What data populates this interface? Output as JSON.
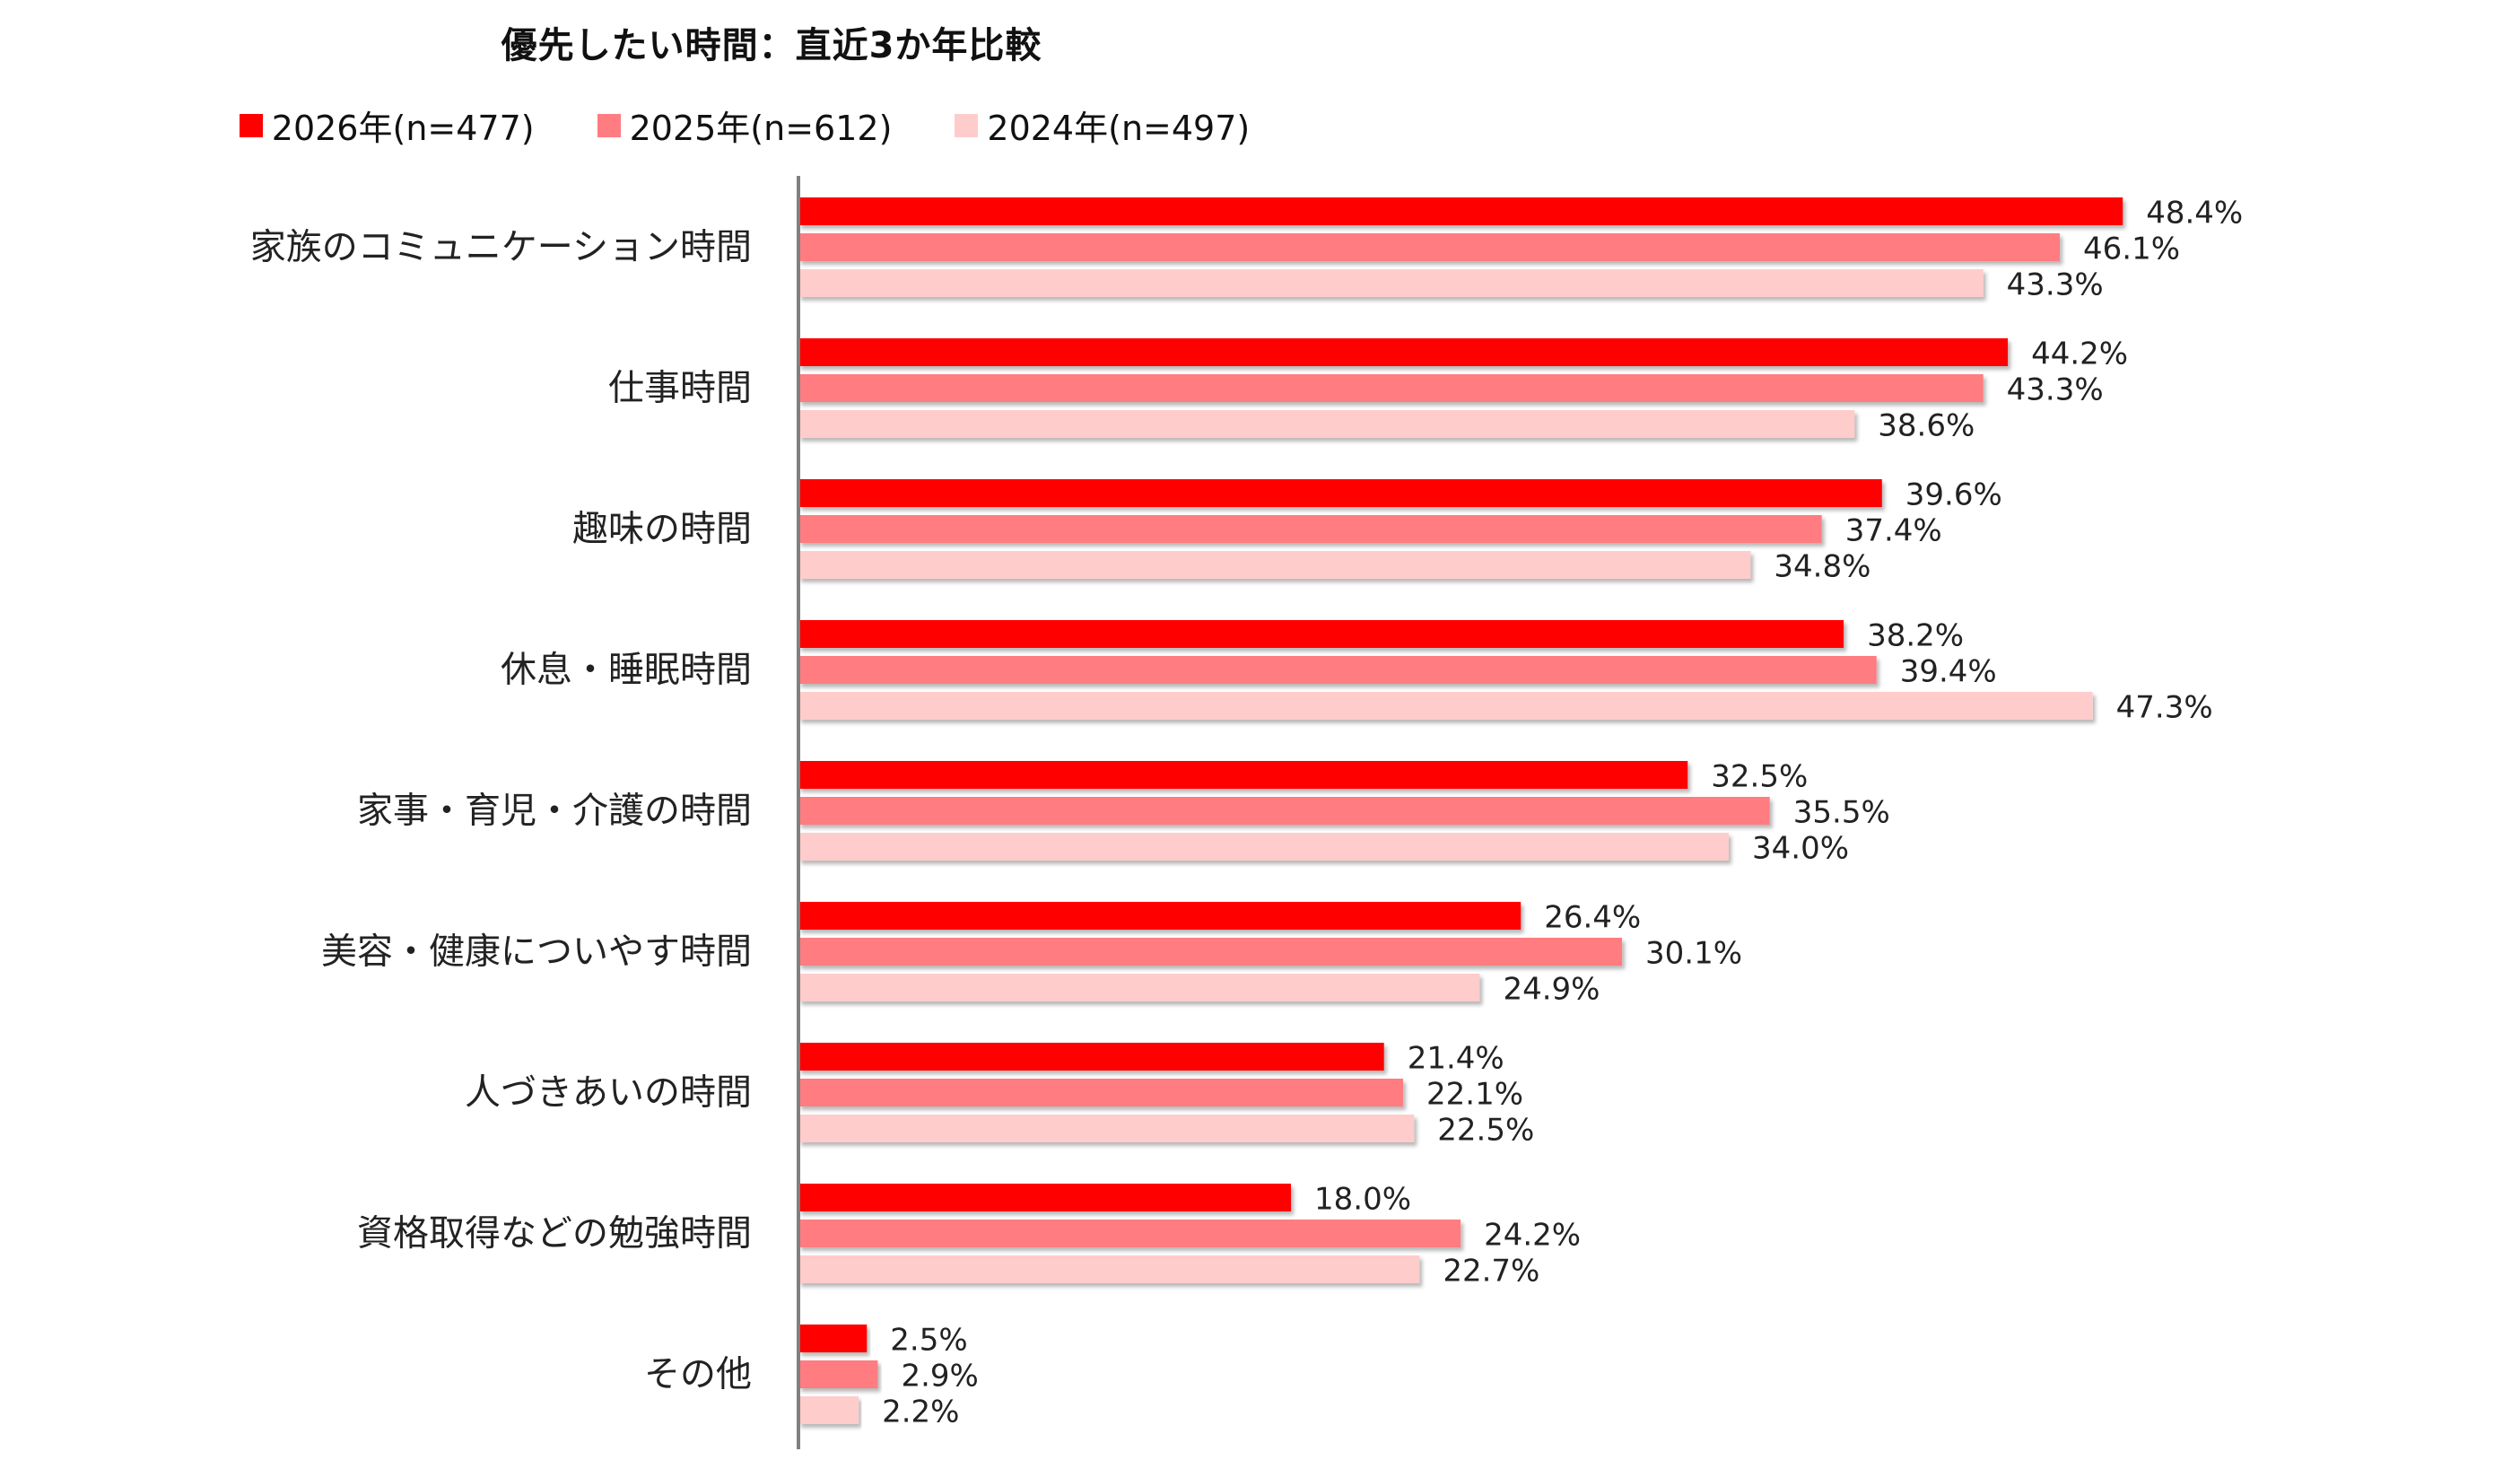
{
  "chart_data": {
    "type": "bar",
    "orientation": "horizontal",
    "title": "優先したい時間：直近3か年比較",
    "categories": [
      "家族のコミュニケーション時間",
      "仕事時間",
      "趣味の時間",
      "休息・睡眠時間",
      "家事・育児・介護の時間",
      "美容・健康についやす時間",
      "人づきあいの時間",
      "資格取得などの勉強時間",
      "その他"
    ],
    "series": [
      {
        "name": "2026年(n=477)",
        "color": "#FF0000",
        "values": [
          48.4,
          44.2,
          39.6,
          38.2,
          32.5,
          26.4,
          21.4,
          18.0,
          2.5
        ],
        "labels": [
          "48.4%",
          "44.2%",
          "39.6%",
          "38.2%",
          "32.5%",
          "26.4%",
          "21.4%",
          "18.0%",
          "2.5%"
        ]
      },
      {
        "name": "2025年(n=612)",
        "color": "#FF7C80",
        "values": [
          46.1,
          43.3,
          37.4,
          39.4,
          35.5,
          30.1,
          22.1,
          24.2,
          2.9
        ],
        "labels": [
          "46.1%",
          "43.3%",
          "37.4%",
          "39.4%",
          "35.5%",
          "30.1%",
          "22.1%",
          "24.2%",
          "2.9%"
        ]
      },
      {
        "name": "2024年(n=497)",
        "color": "#FFCCCC",
        "values": [
          43.3,
          38.6,
          34.8,
          47.3,
          34.0,
          24.9,
          22.5,
          22.7,
          2.2
        ],
        "labels": [
          "43.3%",
          "38.6%",
          "34.8%",
          "47.3%",
          "34.0%",
          "24.9%",
          "22.5%",
          "22.7%",
          "2.2%"
        ]
      }
    ],
    "xlim": [
      0,
      50
    ],
    "unit": "%",
    "legend_position": "top",
    "grid": false,
    "axis_color": "#808080"
  }
}
